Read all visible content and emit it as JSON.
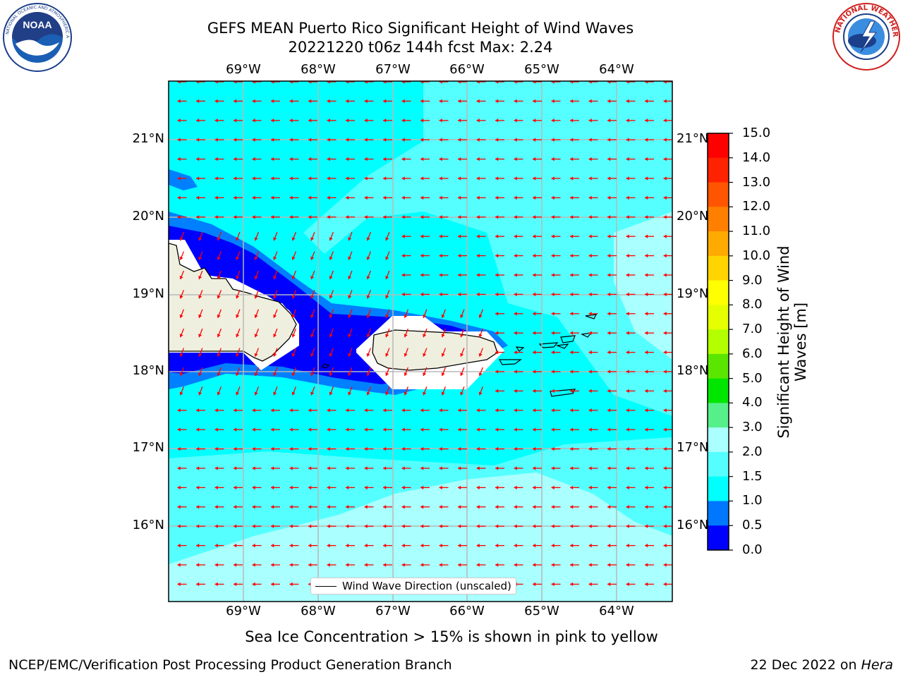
{
  "title": {
    "line1": "GEFS MEAN Puerto Rico Significant Height of Wind Waves",
    "line2": "20221220 t06z 144h fcst   Max: 2.24"
  },
  "logos": {
    "left": "NOAA",
    "right": "National Weather Service"
  },
  "map": {
    "lon_labels": [
      "69°W",
      "68°W",
      "67°W",
      "66°W",
      "65°W",
      "64°W"
    ],
    "lat_labels": [
      "21°N",
      "20°N",
      "19°N",
      "18°N",
      "17°N",
      "16°N"
    ],
    "legend": "Wind Wave Direction (unscaled)"
  },
  "colorbar": {
    "title": "Significant Height of Wind Waves [m]",
    "title_line1": "Significant Height of Wind",
    "title_line2": "Waves [m]",
    "ticks": [
      "15.0",
      "14.0",
      "13.0",
      "12.0",
      "11.0",
      "10.0",
      "9.0",
      "8.0",
      "7.0",
      "6.0",
      "5.0",
      "4.0",
      "3.0",
      "2.0",
      "1.5",
      "1.0",
      "0.5",
      "0.0"
    ],
    "colors": [
      "#ff0000",
      "#ff2200",
      "#ff5500",
      "#ff8000",
      "#ffaa00",
      "#ffd400",
      "#ffff00",
      "#e5ff00",
      "#b3ff00",
      "#5be600",
      "#00e600",
      "#55f089",
      "#aaffff",
      "#55ffff",
      "#00ffff",
      "#0077ff",
      "#0000ff"
    ]
  },
  "note": "Sea Ice Concentration > 15% is shown in pink to yellow",
  "footer": {
    "left": "NCEP/EMC/Verification Post Processing Product Generation Branch",
    "right_prefix": "22 Dec 2022 on ",
    "right_host": "Hera"
  }
}
